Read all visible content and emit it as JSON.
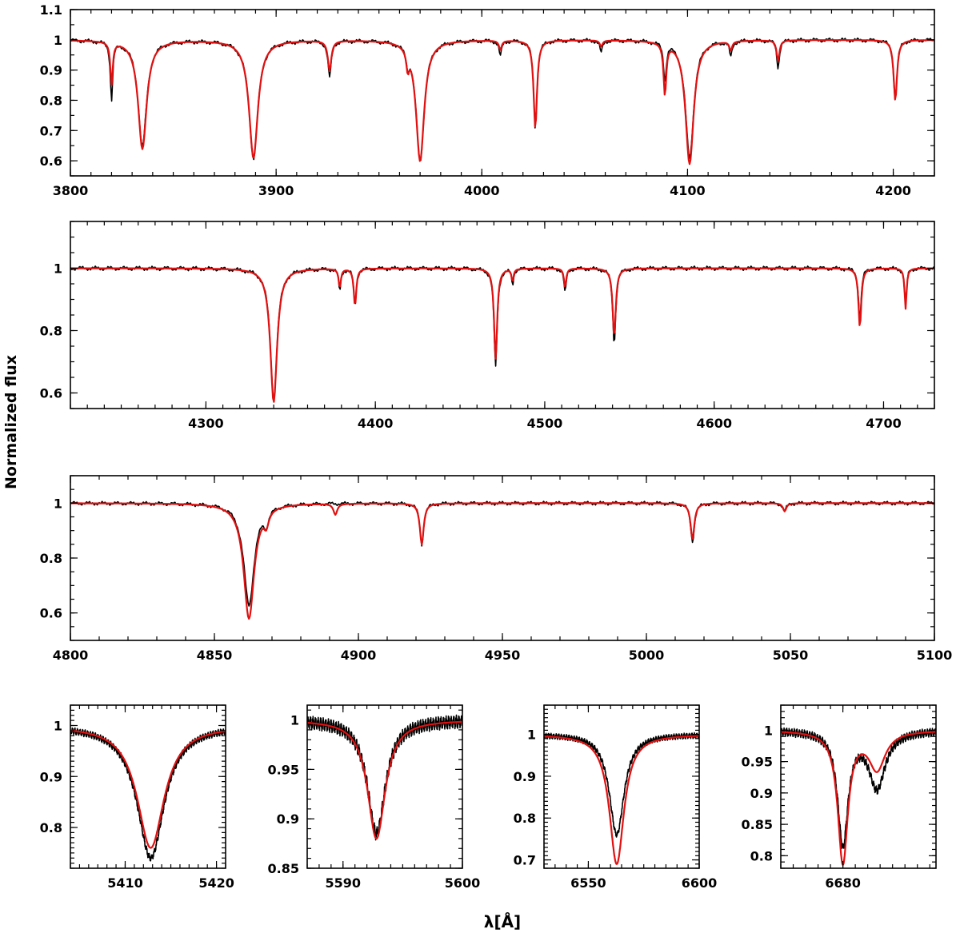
{
  "figure": {
    "ylabel": "Normalized flux",
    "xlabel": "λ[Å]",
    "colors": {
      "observed": "#000000",
      "model": "#e01010"
    }
  },
  "chart_data": [
    {
      "type": "line",
      "xlim": [
        3800,
        4220
      ],
      "ylim": [
        0.55,
        1.1
      ],
      "xticks": [
        3800,
        3900,
        4000,
        4100,
        4200
      ],
      "yticks": [
        0.6,
        0.7,
        0.8,
        0.9,
        1,
        1.1
      ],
      "ytick_labels": [
        "0.6",
        "0.7",
        "0.8",
        "0.9",
        "1",
        "1.1"
      ],
      "grid": false,
      "lines": [
        {
          "center": 3820,
          "width": 0.7,
          "obs_depth": 0.19,
          "mod_depth": 0.14
        },
        {
          "center": 3835,
          "width": 2.5,
          "obs_depth": 0.35,
          "mod_depth": 0.36
        },
        {
          "center": 3889,
          "width": 2.6,
          "obs_depth": 0.39,
          "mod_depth": 0.39
        },
        {
          "center": 3926,
          "width": 1.0,
          "obs_depth": 0.12,
          "mod_depth": 0.1
        },
        {
          "center": 3964,
          "width": 0.8,
          "obs_depth": 0.05,
          "mod_depth": 0.06
        },
        {
          "center": 3970,
          "width": 2.4,
          "obs_depth": 0.4,
          "mod_depth": 0.4
        },
        {
          "center": 4009,
          "width": 0.8,
          "obs_depth": 0.05,
          "mod_depth": 0.03
        },
        {
          "center": 4026,
          "width": 1.0,
          "obs_depth": 0.29,
          "mod_depth": 0.29
        },
        {
          "center": 4058,
          "width": 0.8,
          "obs_depth": 0.04,
          "mod_depth": 0.02
        },
        {
          "center": 4089,
          "width": 0.8,
          "obs_depth": 0.12,
          "mod_depth": 0.17
        },
        {
          "center": 4101,
          "width": 2.4,
          "obs_depth": 0.39,
          "mod_depth": 0.41
        },
        {
          "center": 4121,
          "width": 0.8,
          "obs_depth": 0.05,
          "mod_depth": 0.03
        },
        {
          "center": 4144,
          "width": 0.8,
          "obs_depth": 0.09,
          "mod_depth": 0.07
        },
        {
          "center": 4201,
          "width": 1.0,
          "obs_depth": 0.2,
          "mod_depth": 0.2
        }
      ]
    },
    {
      "type": "line",
      "xlim": [
        4220,
        4730
      ],
      "ylim": [
        0.55,
        1.15
      ],
      "xticks": [
        4300,
        4400,
        4500,
        4600,
        4700
      ],
      "yticks": [
        0.6,
        0.8,
        1
      ],
      "ytick_labels": [
        "0.6",
        "0.8",
        "1"
      ],
      "grid": false,
      "lines": [
        {
          "center": 4340,
          "width": 2.4,
          "obs_depth": 0.42,
          "mod_depth": 0.43
        },
        {
          "center": 4379,
          "width": 0.8,
          "obs_depth": 0.07,
          "mod_depth": 0.06
        },
        {
          "center": 4388,
          "width": 0.9,
          "obs_depth": 0.12,
          "mod_depth": 0.12
        },
        {
          "center": 4471,
          "width": 1.1,
          "obs_depth": 0.32,
          "mod_depth": 0.29
        },
        {
          "center": 4481,
          "width": 0.7,
          "obs_depth": 0.05,
          "mod_depth": 0.04
        },
        {
          "center": 4512,
          "width": 0.8,
          "obs_depth": 0.08,
          "mod_depth": 0.06
        },
        {
          "center": 4541,
          "width": 1.1,
          "obs_depth": 0.24,
          "mod_depth": 0.22
        },
        {
          "center": 4686,
          "width": 1.0,
          "obs_depth": 0.16,
          "mod_depth": 0.19
        },
        {
          "center": 4713,
          "width": 0.7,
          "obs_depth": 0.13,
          "mod_depth": 0.13
        }
      ]
    },
    {
      "type": "line",
      "xlim": [
        4800,
        5100
      ],
      "ylim": [
        0.5,
        1.1
      ],
      "xticks": [
        4800,
        4850,
        4900,
        4950,
        5000,
        5050,
        5100
      ],
      "yticks": [
        0.6,
        0.8,
        1
      ],
      "ytick_labels": [
        "0.6",
        "0.8",
        "1"
      ],
      "grid": false,
      "lines": [
        {
          "center": 4862,
          "width": 2.2,
          "obs_depth": 0.37,
          "mod_depth": 0.42
        },
        {
          "center": 4868,
          "width": 1.0,
          "obs_depth": 0.05,
          "mod_depth": 0.05
        },
        {
          "center": 4892,
          "width": 0.8,
          "obs_depth": 0.0,
          "mod_depth": 0.04
        },
        {
          "center": 4922,
          "width": 0.8,
          "obs_depth": 0.15,
          "mod_depth": 0.15
        },
        {
          "center": 5016,
          "width": 0.8,
          "obs_depth": 0.14,
          "mod_depth": 0.13
        },
        {
          "center": 5048,
          "width": 0.7,
          "obs_depth": 0.03,
          "mod_depth": 0.03
        }
      ]
    },
    {
      "type": "line",
      "xlim": [
        5404,
        5421
      ],
      "ylim": [
        0.72,
        1.04
      ],
      "xticks": [
        5410,
        5420
      ],
      "yticks": [
        0.8,
        0.9,
        1
      ],
      "ytick_labels": [
        "0.8",
        "0.9",
        "1"
      ],
      "grid": false,
      "lines": [
        {
          "center": 5412.8,
          "width": 1.8,
          "obs_depth": 0.26,
          "mod_depth": 0.24
        }
      ]
    },
    {
      "type": "line",
      "xlim": [
        5587,
        5600
      ],
      "ylim": [
        0.85,
        1.015
      ],
      "xticks": [
        5590,
        5600
      ],
      "yticks": [
        0.85,
        0.9,
        0.95,
        1
      ],
      "ytick_labels": [
        "0.85",
        "0.9",
        "0.95",
        "1"
      ],
      "grid": false,
      "lines": [
        {
          "center": 5592.8,
          "width": 0.9,
          "obs_depth": 0.115,
          "mod_depth": 0.12
        }
      ]
    },
    {
      "type": "line",
      "xlim": [
        6530,
        6600
      ],
      "ylim": [
        0.68,
        1.07
      ],
      "xticks": [
        6550,
        6600
      ],
      "yticks": [
        0.7,
        0.8,
        0.9,
        1
      ],
      "ytick_labels": [
        "0.7",
        "0.8",
        "0.9",
        "1"
      ],
      "grid": false,
      "lines": [
        {
          "center": 6562.8,
          "width": 4.0,
          "obs_depth": 0.24,
          "mod_depth": 0.31
        }
      ]
    },
    {
      "type": "line",
      "xlim": [
        6670,
        6695
      ],
      "ylim": [
        0.78,
        1.04
      ],
      "xticks": [
        6680
      ],
      "yticks": [
        0.8,
        0.85,
        0.9,
        0.95,
        1
      ],
      "ytick_labels": [
        "0.8",
        "0.85",
        "0.9",
        "0.95",
        "1"
      ],
      "grid": false,
      "lines": [
        {
          "center": 6680,
          "width": 1.0,
          "obs_depth": 0.18,
          "mod_depth": 0.21
        },
        {
          "center": 6685.5,
          "width": 1.6,
          "obs_depth": 0.09,
          "mod_depth": 0.06
        }
      ]
    }
  ]
}
